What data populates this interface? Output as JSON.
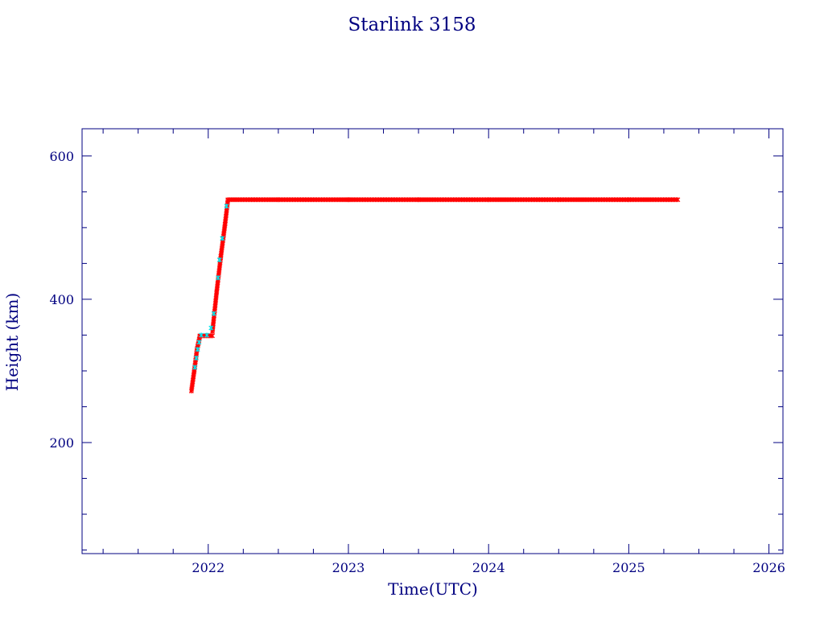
{
  "chart_data": {
    "type": "scatter",
    "title": "Starlink 3158",
    "xlabel": "Time(UTC)",
    "ylabel": "Height (km)",
    "xlim": [
      2021.1,
      2026.1
    ],
    "ylim": [
      45,
      638
    ],
    "x_ticks": [
      2022,
      2023,
      2024,
      2025,
      2026
    ],
    "y_ticks": [
      200,
      400,
      600
    ],
    "x_minor_step": 0.25,
    "y_minor_step": 50,
    "grid": false,
    "legend": "none",
    "colors": {
      "frame": "#000080",
      "text": "#000080",
      "primary_points": "#ff0000",
      "secondary_points": "#00e5ee"
    },
    "series": [
      {
        "color": "#ff0000",
        "marker": "cross",
        "segments": [
          {
            "x": [
              2021.88,
              2021.9,
              2021.92,
              2021.94
            ],
            "y": [
              272,
              300,
              330,
              348
            ]
          },
          {
            "x": [
              2021.94,
              2022.03
            ],
            "y": [
              349,
              349
            ]
          },
          {
            "x": [
              2022.03,
              2022.06,
              2022.09,
              2022.12,
              2022.14
            ],
            "y": [
              355,
              410,
              460,
              505,
              538
            ]
          },
          {
            "x": [
              2022.14,
              2022.5,
              2023.0,
              2023.5,
              2024.0,
              2024.5,
              2025.0,
              2025.35
            ],
            "y": [
              539,
              539,
              539,
              539,
              539,
              539,
              539,
              539
            ]
          }
        ]
      },
      {
        "color": "#00e5ee",
        "marker": "cross",
        "points": {
          "x": [
            2021.905,
            2021.915,
            2021.925,
            2021.935,
            2021.95,
            2021.99,
            2022.02,
            2022.04,
            2022.07,
            2022.08,
            2022.1,
            2022.13
          ],
          "y": [
            305,
            318,
            330,
            340,
            350,
            350,
            360,
            380,
            430,
            455,
            485,
            530
          ]
        }
      }
    ]
  }
}
